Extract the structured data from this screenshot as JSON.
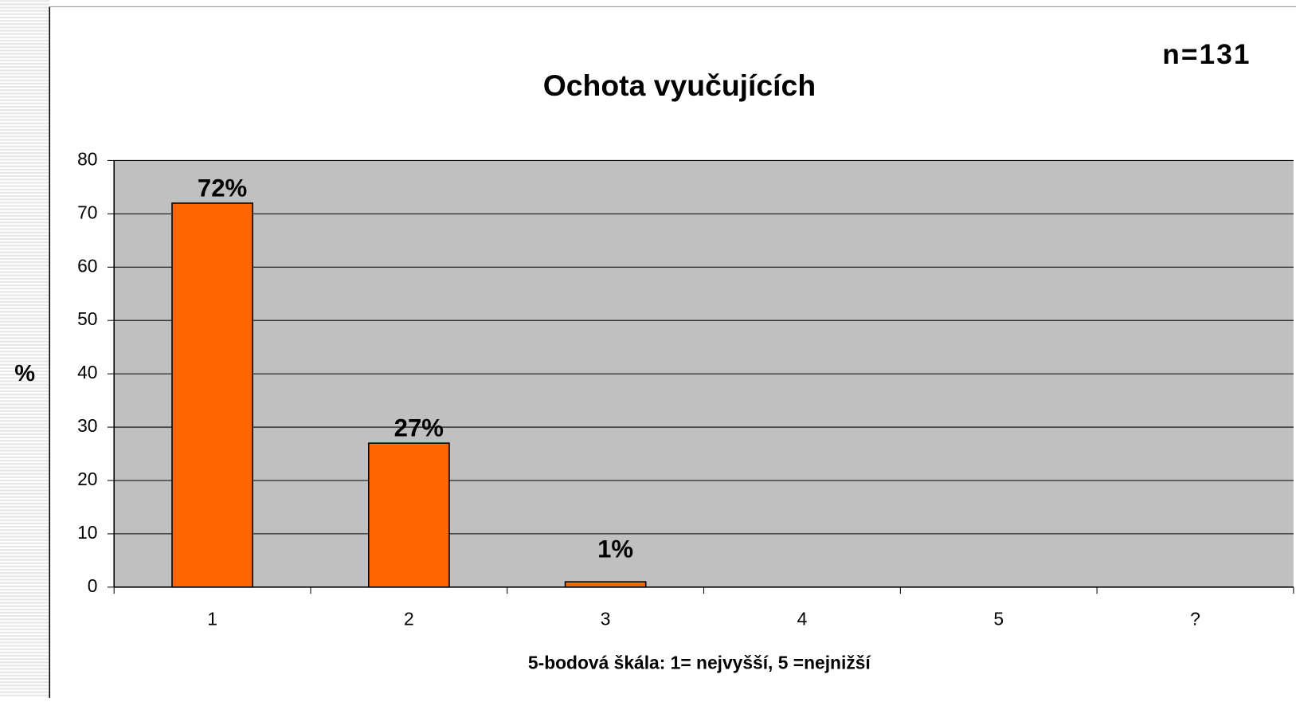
{
  "chart_data": {
    "type": "bar",
    "title": "Ochota vyučujících",
    "annotation": "n=131",
    "x_label": "5-bodová škála: 1= nejvyšší, 5 =nejnižší",
    "y_label": "%",
    "categories": [
      "1",
      "2",
      "3",
      "4",
      "5",
      "?"
    ],
    "values": [
      72,
      27,
      1,
      null,
      null,
      null
    ],
    "value_labels": [
      "72%",
      "27%",
      "1%",
      null,
      null,
      null
    ],
    "color": "#ff6600",
    "background": "#c0c0c0",
    "ylim": [
      0,
      80
    ],
    "yticks": [
      0,
      10,
      20,
      30,
      40,
      50,
      60,
      70,
      80
    ],
    "grid": true
  }
}
